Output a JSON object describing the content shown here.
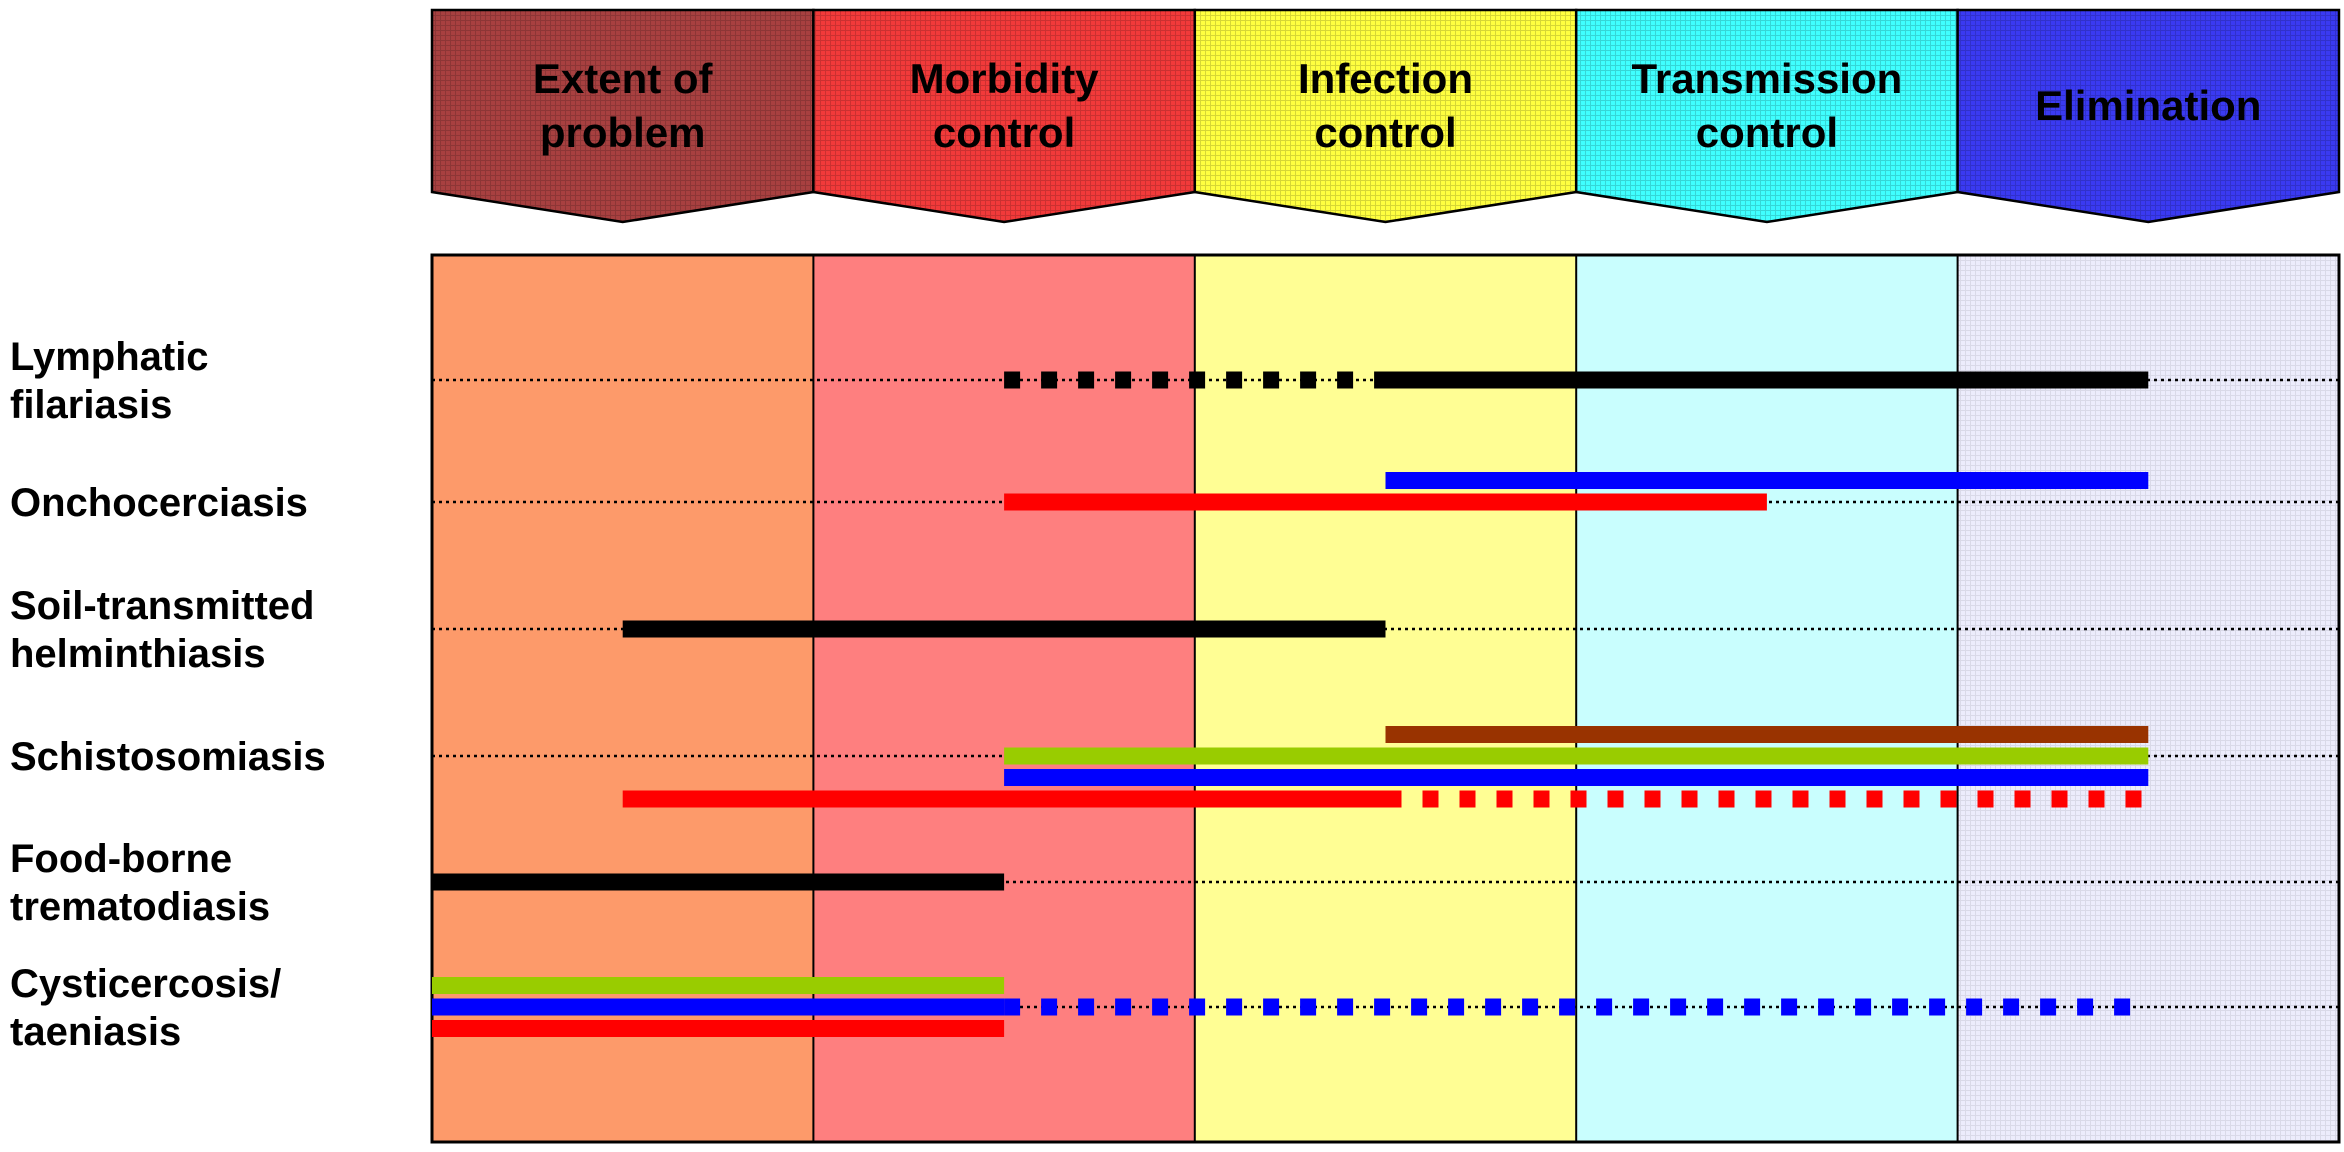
{
  "colors": {
    "phase_fills": [
      "#a84040",
      "#f23a3a",
      "#ffff40",
      "#40ffff",
      "#3a3af2"
    ],
    "column_fills": [
      "#fd9a6a",
      "#fe7f7f",
      "#fffe94",
      "#c9fefe",
      "#ececfc"
    ],
    "black": "#000000",
    "red": "#ff0000",
    "blue": "#0000ff",
    "green": "#99cc00",
    "brown": "#993300"
  },
  "phases": [
    {
      "lines": [
        "Extent of",
        "problem"
      ]
    },
    {
      "lines": [
        "Morbidity",
        "control"
      ]
    },
    {
      "lines": [
        "Infection",
        "control"
      ]
    },
    {
      "lines": [
        "Transmission",
        "control"
      ]
    },
    {
      "lines": [
        "Elimination"
      ]
    }
  ],
  "diseases": [
    {
      "lines": [
        "Lymphatic",
        "filariasis"
      ],
      "bars": [
        {
          "color": "black",
          "from": 1.5,
          "to": 2.5,
          "style": "dashed",
          "offset": 0
        },
        {
          "color": "black",
          "from": 2.5,
          "to": 4.5,
          "style": "solid",
          "offset": 0
        }
      ]
    },
    {
      "lines": [
        "Onchocerciasis"
      ],
      "bars": [
        {
          "color": "blue",
          "from": 2.5,
          "to": 4.5,
          "style": "solid",
          "offset": -1
        },
        {
          "color": "red",
          "from": 1.5,
          "to": 3.5,
          "style": "solid",
          "offset": 0
        }
      ]
    },
    {
      "lines": [
        "Soil-transmitted",
        "helminthiasis"
      ],
      "bars": [
        {
          "color": "black",
          "from": 0.5,
          "to": 2.5,
          "style": "solid",
          "offset": 0
        }
      ]
    },
    {
      "lines": [
        "Schistosomiasis"
      ],
      "bars": [
        {
          "color": "brown",
          "from": 2.5,
          "to": 4.5,
          "style": "solid",
          "offset": -1
        },
        {
          "color": "green",
          "from": 1.5,
          "to": 4.5,
          "style": "solid",
          "offset": 0
        },
        {
          "color": "blue",
          "from": 1.5,
          "to": 4.5,
          "style": "solid",
          "offset": 1
        },
        {
          "color": "red",
          "from": 0.5,
          "to": 2.5,
          "style": "solid",
          "offset": 2
        },
        {
          "color": "red",
          "from": 2.5,
          "to": 4.5,
          "style": "dashed",
          "offset": 2
        }
      ]
    },
    {
      "lines": [
        "Food-borne",
        "trematodiasis"
      ],
      "bars": [
        {
          "color": "black",
          "from": 0,
          "to": 1.5,
          "style": "solid",
          "offset": 0
        }
      ]
    },
    {
      "lines": [
        "Cysticercosis/",
        "taeniasis"
      ],
      "bars": [
        {
          "color": "green",
          "from": 0,
          "to": 1.5,
          "style": "solid",
          "offset": -1
        },
        {
          "color": "blue",
          "from": 0,
          "to": 1.5,
          "style": "solid",
          "offset": 0
        },
        {
          "color": "blue",
          "from": 1.5,
          "to": 4.5,
          "style": "dashed",
          "offset": 0
        },
        {
          "color": "red",
          "from": 0,
          "to": 1.5,
          "style": "solid",
          "offset": 1
        }
      ]
    }
  ]
}
